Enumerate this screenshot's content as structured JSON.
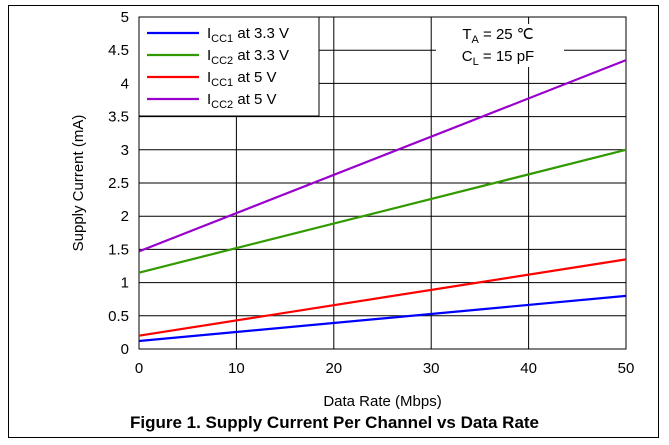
{
  "caption": "Figure 1. Supply Current Per Channel vs Data Rate",
  "chart_data": {
    "type": "line",
    "xlabel": "Data Rate (Mbps)",
    "ylabel": "Supply Current (mA)",
    "xlim": [
      0,
      50
    ],
    "ylim": [
      0,
      5
    ],
    "xticks": [
      "0",
      "10",
      "20",
      "30",
      "40",
      "50"
    ],
    "yticks": [
      "0",
      "0.5",
      "1",
      "1.5",
      "2",
      "2.5",
      "3",
      "3.5",
      "4",
      "4.5",
      "5"
    ],
    "grid": true,
    "legend_position": "top-left",
    "conditions": {
      "line1_main": "T",
      "line1_sub": "A",
      "line1_rest": " = 25 ℃",
      "line2_main": "C",
      "line2_sub": "L",
      "line2_rest": " = 15 pF"
    },
    "series": [
      {
        "name": "ICC1 at 3.3 V",
        "name_main": "I",
        "name_sub": "CC1",
        "name_rest": " at 3.3 V",
        "color": "#0000ff",
        "x": [
          0,
          50
        ],
        "y": [
          0.12,
          0.8
        ]
      },
      {
        "name": "ICC2 at 3.3 V",
        "name_main": "I",
        "name_sub": "CC2",
        "name_rest": " at 3.3 V",
        "color": "#339900",
        "x": [
          0,
          50
        ],
        "y": [
          1.15,
          3.0
        ]
      },
      {
        "name": "ICC1 at 5 V",
        "name_main": "I",
        "name_sub": "CC1",
        "name_rest": " at 5 V",
        "color": "#ff0000",
        "x": [
          0,
          50
        ],
        "y": [
          0.2,
          1.35
        ]
      },
      {
        "name": "ICC2 at 5 V",
        "name_main": "I",
        "name_sub": "CC2",
        "name_rest": " at 5 V",
        "color": "#9900cc",
        "x": [
          0,
          50
        ],
        "y": [
          1.47,
          4.35
        ]
      }
    ]
  }
}
